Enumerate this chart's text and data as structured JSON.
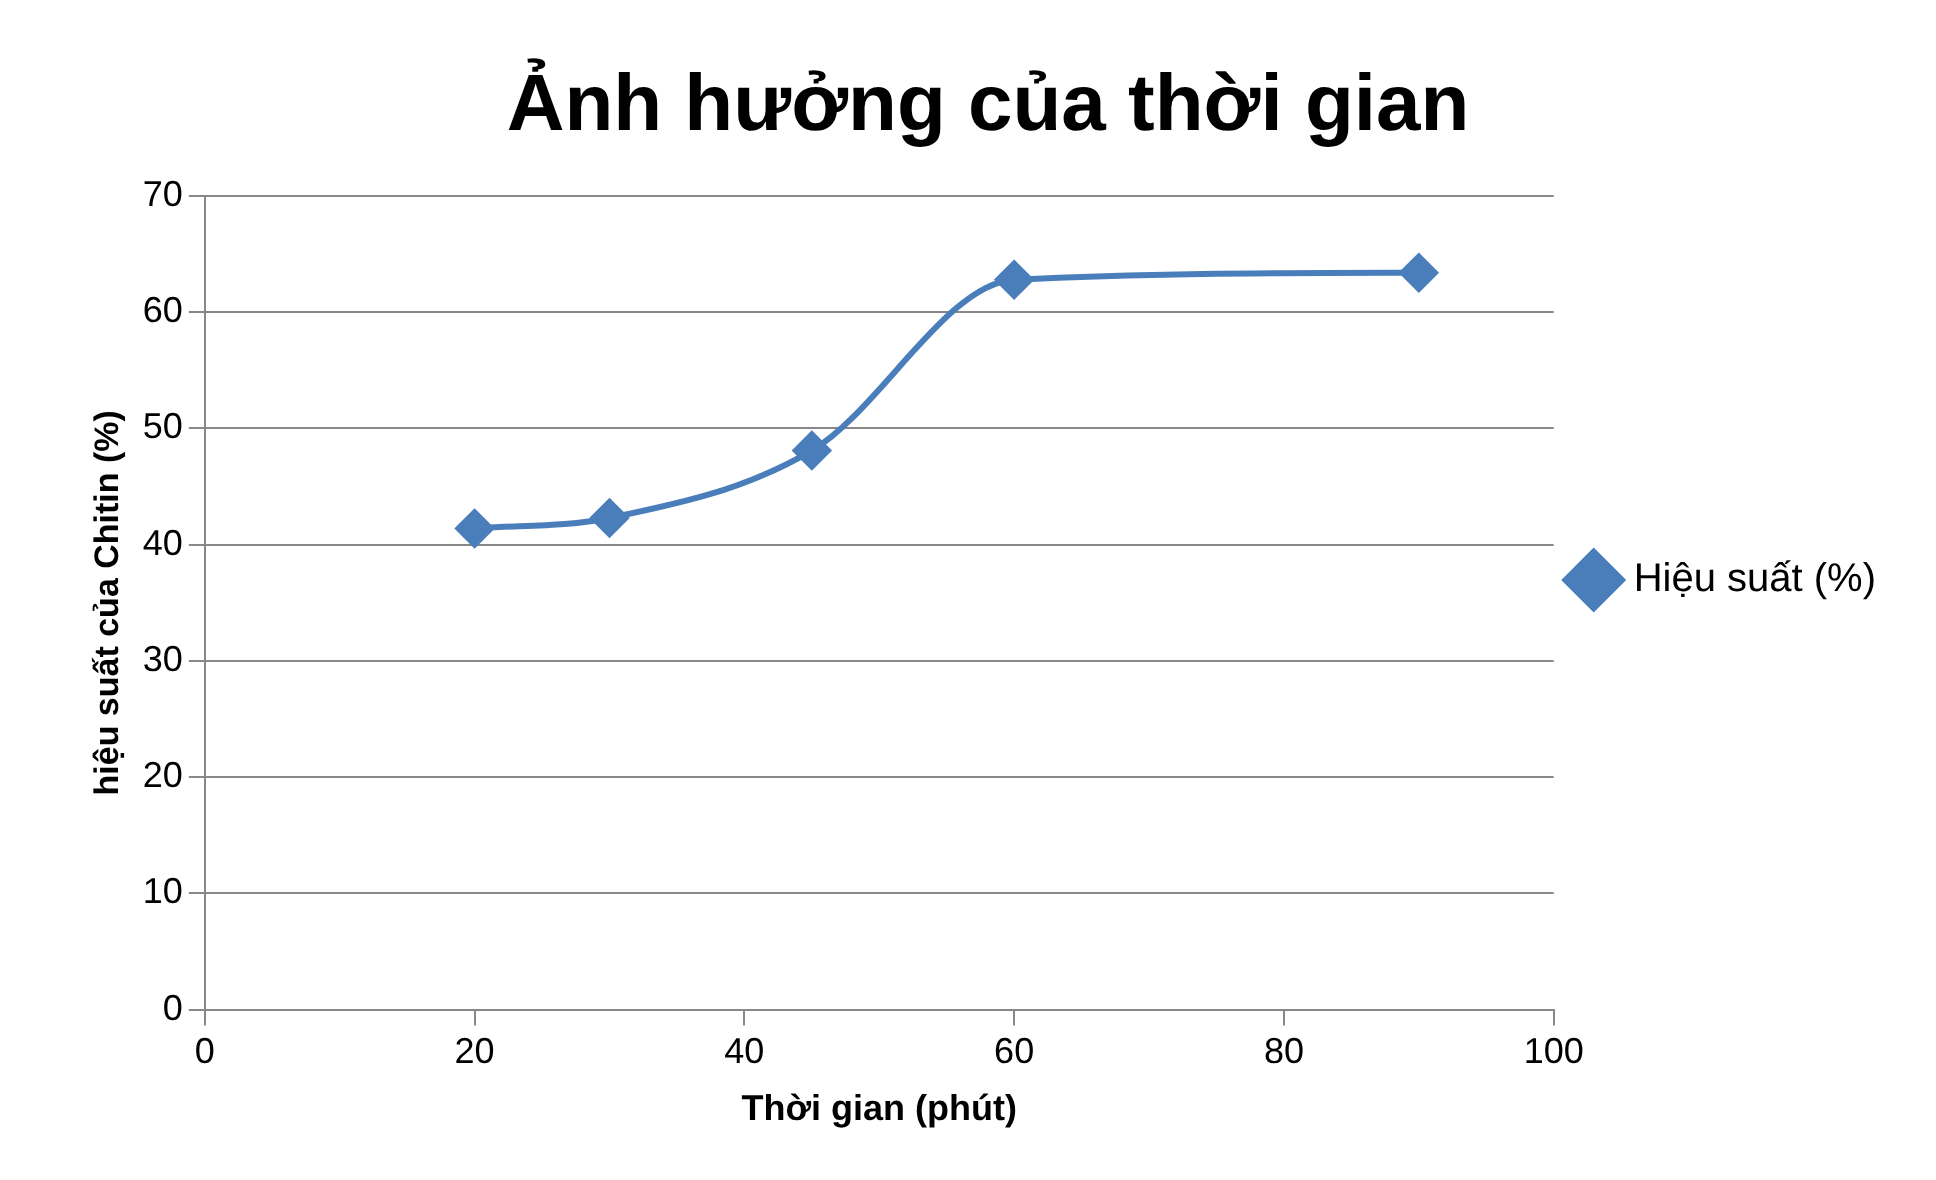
{
  "chart_data": {
    "type": "line",
    "title": "Ảnh hưởng của thời gian",
    "xlabel": "Thời gian (phút)",
    "ylabel": "hiệu suất của Chitin (%)",
    "x": [
      20,
      30,
      45,
      60,
      90
    ],
    "series": [
      {
        "name": "Hiệu suất (%)",
        "color": "#4a7ebb",
        "values": [
          41.4,
          42.3,
          48.1,
          62.8,
          63.4
        ]
      }
    ],
    "xlim": [
      0,
      100
    ],
    "xticks": [
      0,
      20,
      40,
      60,
      80,
      100
    ],
    "ylim": [
      0,
      70
    ],
    "yticks": [
      0,
      10,
      20,
      30,
      40,
      50,
      60,
      70
    ],
    "grid": "y",
    "legend": "right",
    "marker": "diamond",
    "line_style": "solid"
  }
}
